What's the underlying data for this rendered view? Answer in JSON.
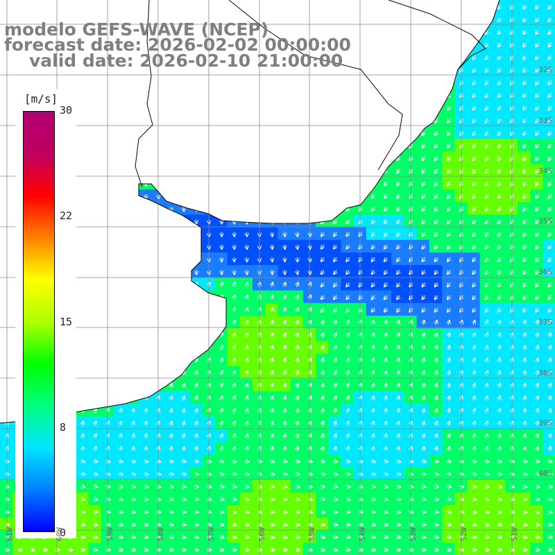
{
  "title": {
    "line1": "modelo GEFS-WAVE (NCEP)",
    "line2": "forecast date: 2026-02-02 00:00:00",
    "line3": "valid date: 2026-02-10 21:00:00"
  },
  "colorbar": {
    "unit": "[m/s]",
    "ticks": [
      "30",
      "22",
      "15",
      "8",
      "0"
    ],
    "min": 0,
    "max": 30,
    "colors": [
      "#0000ff",
      "#0080ff",
      "#00e5ff",
      "#00ff80",
      "#00ff00",
      "#b0ff00",
      "#ffff00",
      "#ff8000",
      "#ff0000",
      "#c00060",
      "#b00070"
    ]
  },
  "latitude_labels": [
    "32S",
    "33S",
    "34S",
    "35S",
    "36S",
    "37S",
    "38S",
    "39S",
    "40S"
  ],
  "longitude_labels": [
    "61W",
    "60W",
    "59W",
    "58W",
    "57W",
    "56W",
    "55W",
    "54W",
    "53W",
    "52W",
    "51W"
  ],
  "field_colors": {
    "calm_blue": "#0050ff",
    "blue": "#1a7dff",
    "cyan": "#00e8ff",
    "green": "#00ff66",
    "lime": "#66ff00",
    "land": "#ffffff",
    "grid": "#888888",
    "coast": "#000000",
    "arrow": "#ffffff"
  }
}
